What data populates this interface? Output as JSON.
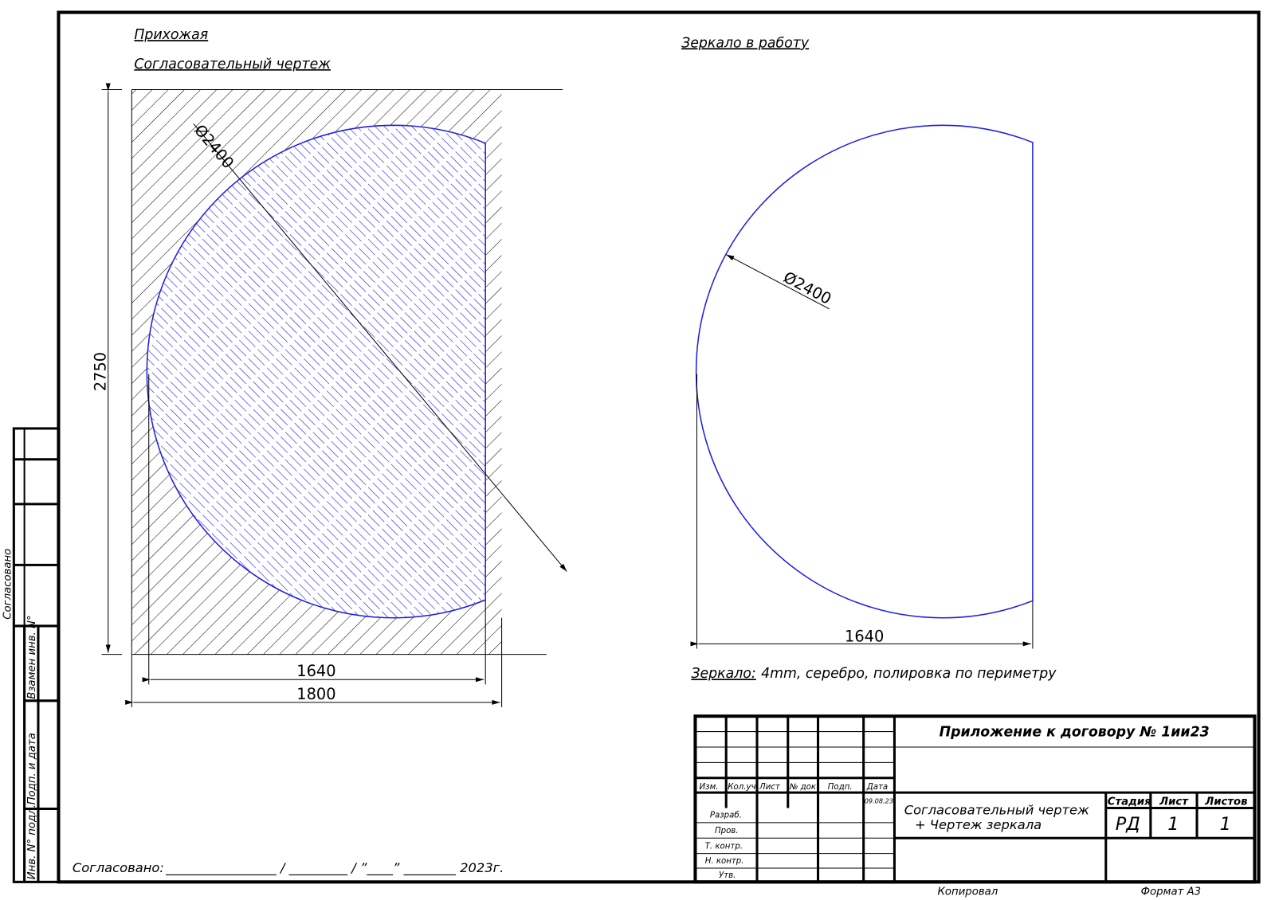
{
  "header": {
    "room": "Прихожая",
    "subtitle": "Согласовательный чертеж",
    "right_title": "Зеркало в работу"
  },
  "left_drawing": {
    "diameter": "Ø2400",
    "height": "2750",
    "width_inner": "1640",
    "width_outer": "1800"
  },
  "right_drawing": {
    "diameter": "Ø2400",
    "width": "1640"
  },
  "note": {
    "label": "Зеркало:",
    "text": "4mm, серебро, полировка по периметру"
  },
  "approval": {
    "label": "Согласовано:",
    "line": "_________________ / _________ / ”____” ________ 2023г."
  },
  "side_stamp": {
    "agreed": "Согласовано",
    "fields": [
      "Инв. N° подл.",
      "Подп. и дата",
      "Взамен инв. N°"
    ]
  },
  "title_block": {
    "document": "Приложение к договору № 1ии23",
    "name_line1": "Согласовательный чертеж",
    "name_line2": "+ Чертеж зеркала",
    "col_headers": [
      "Изм.",
      "Кол.уч",
      "Лист",
      "№ док",
      "Подп.",
      "Дата"
    ],
    "date": "09.08.23",
    "roles": [
      "Разраб.",
      "Пров.",
      "Т. контр.",
      "Н. контр.",
      "Утв."
    ],
    "stage_headers": [
      "Стадия",
      "Лист",
      "Листов"
    ],
    "stage_values": [
      "РД",
      "1",
      "1"
    ],
    "copied": "Копировал",
    "format": "Формат А3"
  }
}
